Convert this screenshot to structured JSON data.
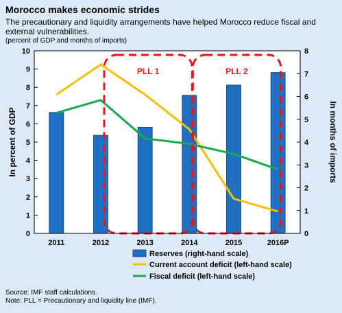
{
  "header": {
    "title": "Morocco makes economic strides",
    "subtitle": "The precautionary and liquidity arrangements have helped Morocco reduce fiscal and external vulnerabilities.",
    "units": "(percent of GDP and months of imports)"
  },
  "footer": {
    "source": "Source: IMF staff calculations.",
    "note": "Note: PLL = Precautionary and liquidity line (IMF)."
  },
  "colors": {
    "reserves": "#1f6fc2",
    "current_account": "#f5c000",
    "fiscal": "#1aa84a",
    "pll_outline": "#e8141b"
  },
  "chart_data": {
    "type": "bar",
    "categories": [
      "2011",
      "2012",
      "2013",
      "2014",
      "2015",
      "2016P"
    ],
    "ylabel": "In percent of GDP",
    "ylim": [
      0,
      10
    ],
    "y_ticks": [
      "0",
      "1",
      "2",
      "3",
      "4",
      "5",
      "6",
      "7",
      "8",
      "9",
      "10"
    ],
    "y2label": "In months of imports",
    "y2lim": [
      0,
      8
    ],
    "y2_ticks": [
      "0",
      "1",
      "2",
      "3",
      "4",
      "5",
      "6",
      "7",
      "8"
    ],
    "series": [
      {
        "name": "Reserves (right-hand scale)",
        "type": "bar",
        "axis": "right",
        "values": [
          5.3,
          4.3,
          4.65,
          6.05,
          6.5,
          7.05
        ]
      },
      {
        "name": "Current account deficit (left-hand scale)",
        "type": "line",
        "axis": "left",
        "values": [
          7.6,
          9.25,
          7.6,
          5.7,
          1.9,
          1.2
        ]
      },
      {
        "name": "Fiscal deficit (left-hand scale)",
        "type": "line",
        "axis": "left",
        "values": [
          6.6,
          7.3,
          5.2,
          4.9,
          4.35,
          3.5
        ]
      }
    ],
    "annotations": [
      {
        "label": "PLL 1",
        "from": "2012",
        "to": "2014"
      },
      {
        "label": "PLL 2",
        "from": "2014",
        "to": "2016P"
      }
    ],
    "legend_position": "bottom"
  }
}
